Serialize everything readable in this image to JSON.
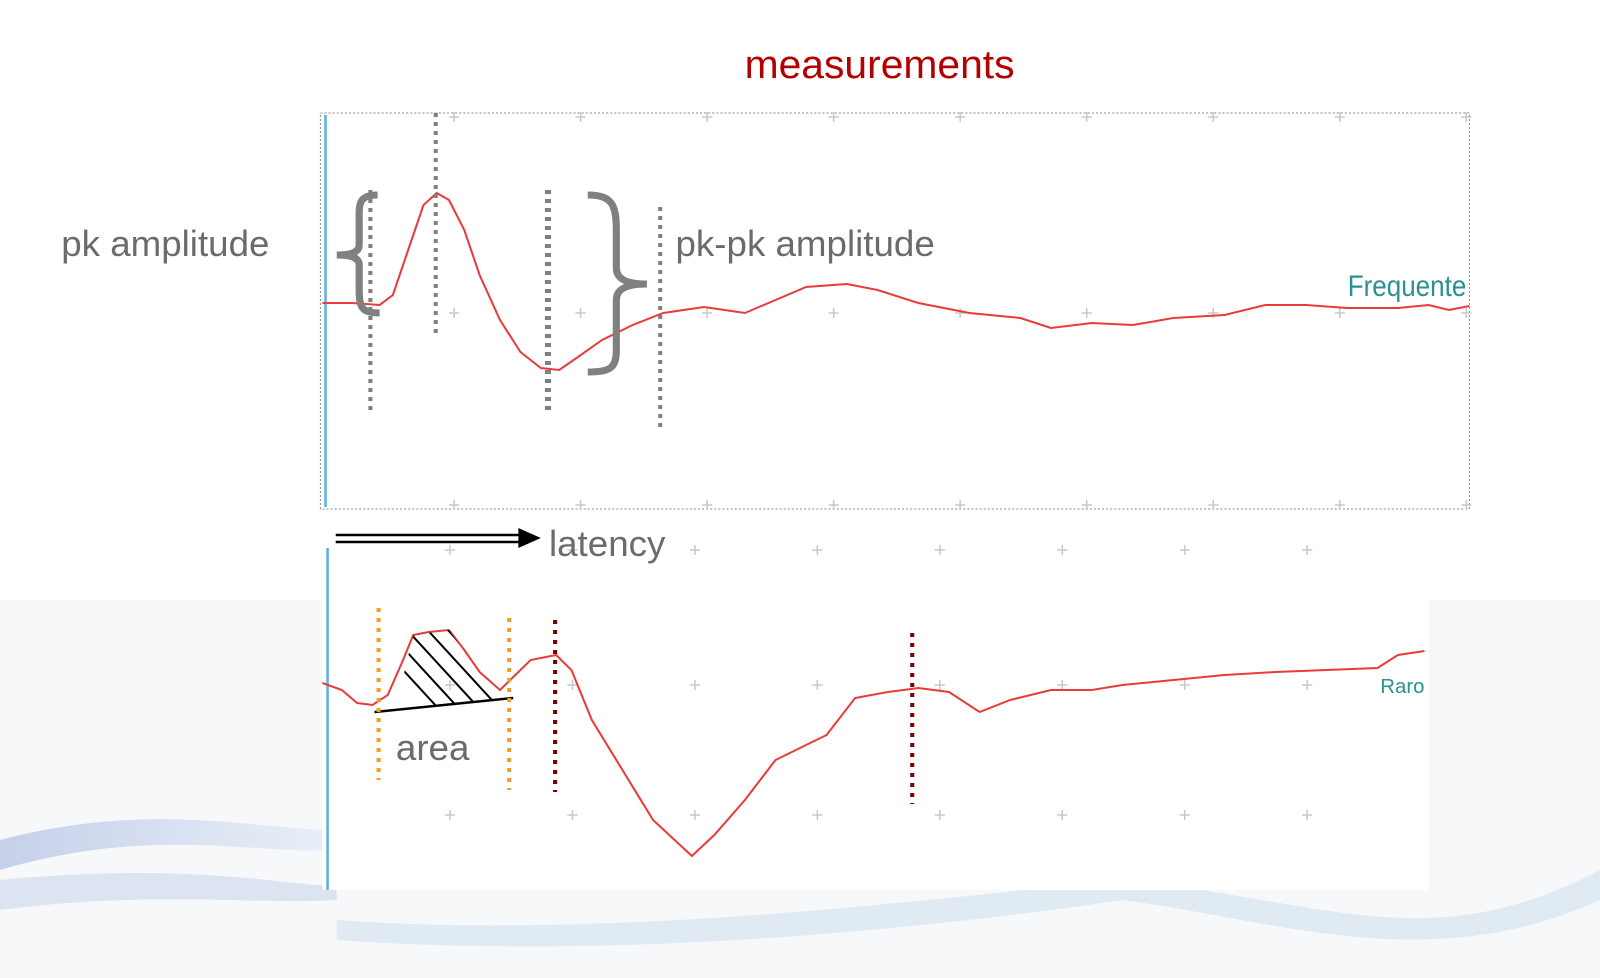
{
  "title": "measurements",
  "labels": {
    "pk_amplitude": "pk amplitude",
    "pk_pk_amplitude": "pk-pk amplitude",
    "latency": "latency",
    "area": "area"
  },
  "traces": {
    "top": "Frequente",
    "bottom": "Raro"
  }
}
